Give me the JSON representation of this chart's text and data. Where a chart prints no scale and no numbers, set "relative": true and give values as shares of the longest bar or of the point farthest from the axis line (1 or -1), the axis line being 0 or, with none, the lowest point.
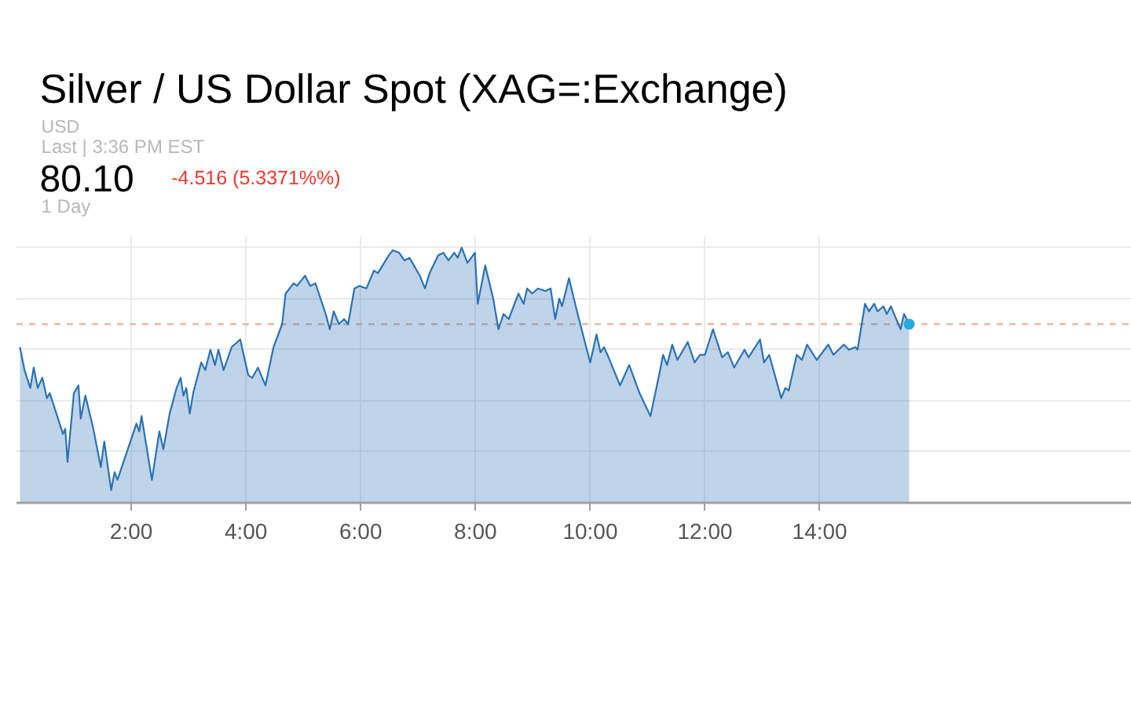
{
  "chart_data": {
    "type": "area",
    "title": "Silver / US Dollar Spot (XAG=:Exchange)",
    "annotations": [
      "USD",
      "Last | 3:36 PM EST",
      "80.10",
      "-4.516 (5.3371%%)",
      "1 Day"
    ],
    "relative": true,
    "xlim": [
      0,
      19.44
    ],
    "xticks": [
      {
        "value": 2,
        "label": "2:00"
      },
      {
        "value": 4,
        "label": "4:00"
      },
      {
        "value": 6,
        "label": "6:00"
      },
      {
        "value": 8,
        "label": "8:00"
      },
      {
        "value": 10,
        "label": "10:00"
      },
      {
        "value": 12,
        "label": "12:00"
      },
      {
        "value": 14,
        "label": "14:00"
      }
    ],
    "grid": true,
    "ref_lines": [
      {
        "axis": "y",
        "value": 0.7,
        "color": "#e8b9a6",
        "line_style": "dashed"
      }
    ],
    "series": [
      {
        "color": "#2a72b5",
        "x": [
          0.06,
          0.14,
          0.24,
          0.3,
          0.37,
          0.45,
          0.53,
          0.58,
          0.81,
          0.85,
          0.89,
          1.0,
          1.08,
          1.12,
          1.2,
          1.33,
          1.47,
          1.53,
          1.65,
          1.71,
          1.76,
          2.09,
          2.14,
          2.18,
          2.36,
          2.49,
          2.56,
          2.67,
          2.79,
          2.86,
          2.91,
          2.96,
          3.02,
          3.08,
          3.22,
          3.29,
          3.38,
          3.46,
          3.52,
          3.61,
          3.75,
          3.9,
          4.04,
          4.11,
          4.21,
          4.34,
          4.48,
          4.63,
          4.69,
          4.83,
          4.89,
          5.03,
          5.12,
          5.21,
          5.39,
          5.46,
          5.53,
          5.62,
          5.71,
          5.78,
          5.89,
          5.98,
          6.1,
          6.23,
          6.3,
          6.49,
          6.56,
          6.67,
          6.76,
          6.85,
          7.03,
          7.12,
          7.2,
          7.35,
          7.44,
          7.53,
          7.63,
          7.69,
          7.76,
          7.86,
          7.99,
          8.04,
          8.17,
          8.31,
          8.4,
          8.49,
          8.58,
          8.75,
          8.84,
          8.9,
          8.99,
          9.09,
          9.22,
          9.31,
          9.39,
          9.46,
          9.51,
          9.63,
          9.77,
          9.93,
          10.0,
          10.11,
          10.18,
          10.24,
          10.32,
          10.52,
          10.68,
          10.86,
          11.05,
          11.21,
          11.27,
          11.34,
          11.43,
          11.52,
          11.7,
          11.82,
          11.91,
          12.0,
          12.14,
          12.3,
          12.4,
          12.51,
          12.69,
          12.76,
          12.96,
          13.03,
          13.12,
          13.33,
          13.4,
          13.46,
          13.6,
          13.69,
          13.78,
          13.95,
          14.15,
          14.24,
          14.42,
          14.51,
          14.62,
          14.66,
          14.79,
          14.86,
          14.95,
          15.01,
          15.11,
          15.17,
          15.24,
          15.41,
          15.47,
          15.56
        ],
        "values": [
          0.61,
          0.52,
          0.45,
          0.53,
          0.45,
          0.49,
          0.41,
          0.43,
          0.27,
          0.29,
          0.16,
          0.43,
          0.46,
          0.33,
          0.42,
          0.3,
          0.14,
          0.24,
          0.05,
          0.12,
          0.09,
          0.31,
          0.28,
          0.34,
          0.09,
          0.28,
          0.21,
          0.35,
          0.45,
          0.49,
          0.42,
          0.45,
          0.35,
          0.43,
          0.55,
          0.52,
          0.6,
          0.54,
          0.6,
          0.52,
          0.61,
          0.64,
          0.5,
          0.49,
          0.53,
          0.46,
          0.61,
          0.7,
          0.82,
          0.86,
          0.85,
          0.89,
          0.85,
          0.86,
          0.74,
          0.68,
          0.75,
          0.7,
          0.72,
          0.7,
          0.84,
          0.85,
          0.84,
          0.91,
          0.9,
          0.97,
          0.99,
          0.98,
          0.95,
          0.96,
          0.89,
          0.84,
          0.9,
          0.97,
          0.98,
          0.95,
          0.98,
          0.96,
          1.0,
          0.94,
          0.98,
          0.78,
          0.93,
          0.8,
          0.68,
          0.74,
          0.72,
          0.82,
          0.78,
          0.84,
          0.82,
          0.84,
          0.83,
          0.84,
          0.72,
          0.8,
          0.77,
          0.88,
          0.75,
          0.61,
          0.55,
          0.66,
          0.59,
          0.61,
          0.57,
          0.46,
          0.54,
          0.43,
          0.34,
          0.51,
          0.58,
          0.54,
          0.62,
          0.56,
          0.63,
          0.55,
          0.58,
          0.58,
          0.68,
          0.57,
          0.59,
          0.53,
          0.6,
          0.57,
          0.64,
          0.55,
          0.58,
          0.41,
          0.45,
          0.44,
          0.58,
          0.56,
          0.62,
          0.56,
          0.62,
          0.58,
          0.62,
          0.6,
          0.61,
          0.6,
          0.78,
          0.75,
          0.78,
          0.75,
          0.77,
          0.74,
          0.77,
          0.68,
          0.74,
          0.7
        ]
      },
      {
        "type": "scatter",
        "color": "#29abe2",
        "marker": "circle",
        "x": [
          15.56
        ],
        "values": [
          0.7
        ]
      }
    ]
  }
}
